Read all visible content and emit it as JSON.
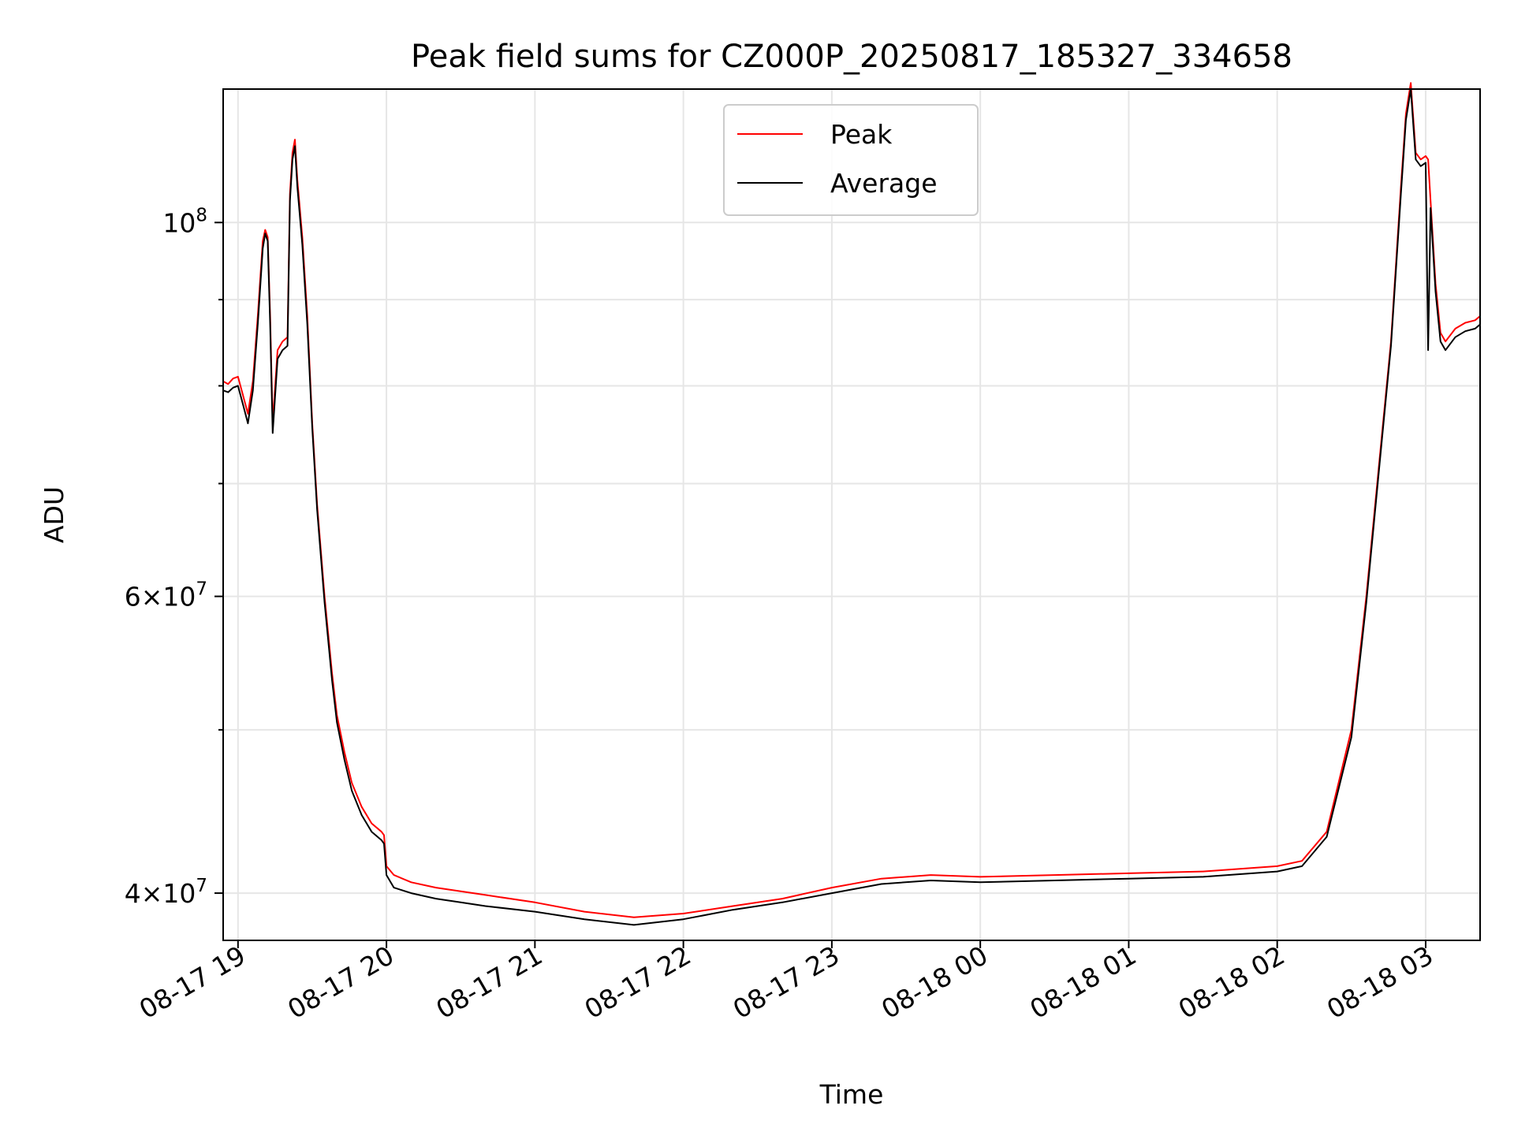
{
  "chart_data": {
    "type": "line",
    "title": "Peak field sums for CZ000P_20250817_185327_334658",
    "xlabel": "Time",
    "ylabel": "ADU",
    "x_axis": {
      "kind": "datetime",
      "range": [
        "2025-08-17 18:54",
        "2025-08-18 03:22"
      ],
      "ticks": [
        "2025-08-17 19:00",
        "2025-08-17 20:00",
        "2025-08-17 21:00",
        "2025-08-17 22:00",
        "2025-08-17 23:00",
        "2025-08-18 00:00",
        "2025-08-18 01:00",
        "2025-08-18 02:00",
        "2025-08-18 03:00"
      ],
      "tick_labels": [
        "08-17 19",
        "08-17 20",
        "08-17 21",
        "08-17 22",
        "08-17 23",
        "08-18 00",
        "08-18 01",
        "08-18 02",
        "08-18 03"
      ]
    },
    "y_axis": {
      "scale": "log",
      "range": [
        37500000,
        120000000
      ],
      "major_ticks": [
        40000000,
        60000000,
        100000000
      ],
      "major_tick_labels": [
        {
          "mantissa": "4",
          "exp": "7"
        },
        {
          "mantissa": "6",
          "exp": "7"
        },
        {
          "mantissa": "",
          "exp": "8"
        }
      ],
      "minor_ticks": [
        50000000,
        70000000,
        80000000,
        90000000
      ]
    },
    "grid": true,
    "legend": {
      "position": "top-center",
      "entries": [
        "Peak",
        "Average"
      ]
    },
    "series": [
      {
        "name": "Peak",
        "color": "#ff0000",
        "x": [
          "2025-08-17 18:54",
          "2025-08-17 18:56",
          "2025-08-17 18:58",
          "2025-08-17 19:00",
          "2025-08-17 19:02",
          "2025-08-17 19:04",
          "2025-08-17 19:06",
          "2025-08-17 19:08",
          "2025-08-17 19:10",
          "2025-08-17 19:11",
          "2025-08-17 19:12",
          "2025-08-17 19:13",
          "2025-08-17 19:14",
          "2025-08-17 19:16",
          "2025-08-17 19:18",
          "2025-08-17 19:20",
          "2025-08-17 19:21",
          "2025-08-17 19:22",
          "2025-08-17 19:23",
          "2025-08-17 19:24",
          "2025-08-17 19:26",
          "2025-08-17 19:28",
          "2025-08-17 19:30",
          "2025-08-17 19:32",
          "2025-08-17 19:35",
          "2025-08-17 19:38",
          "2025-08-17 19:40",
          "2025-08-17 19:43",
          "2025-08-17 19:46",
          "2025-08-17 19:50",
          "2025-08-17 19:54",
          "2025-08-17 19:58",
          "2025-08-17 19:59",
          "2025-08-17 20:00",
          "2025-08-17 20:03",
          "2025-08-17 20:10",
          "2025-08-17 20:20",
          "2025-08-17 20:30",
          "2025-08-17 20:40",
          "2025-08-17 21:00",
          "2025-08-17 21:20",
          "2025-08-17 21:40",
          "2025-08-17 22:00",
          "2025-08-17 22:20",
          "2025-08-17 22:40",
          "2025-08-17 23:00",
          "2025-08-17 23:20",
          "2025-08-17 23:40",
          "2025-08-18 00:00",
          "2025-08-18 00:30",
          "2025-08-18 01:00",
          "2025-08-18 01:30",
          "2025-08-18 02:00",
          "2025-08-18 02:10",
          "2025-08-18 02:20",
          "2025-08-18 02:30",
          "2025-08-18 02:36",
          "2025-08-18 02:42",
          "2025-08-18 02:46",
          "2025-08-18 02:50",
          "2025-08-18 02:52",
          "2025-08-18 02:54",
          "2025-08-18 02:56",
          "2025-08-18 02:58",
          "2025-08-18 03:00",
          "2025-08-18 03:01",
          "2025-08-18 03:02",
          "2025-08-18 03:04",
          "2025-08-18 03:06",
          "2025-08-18 03:08",
          "2025-08-18 03:12",
          "2025-08-18 03:16",
          "2025-08-18 03:20",
          "2025-08-18 03:22"
        ],
        "values": [
          80500000,
          80200000,
          80800000,
          81000000,
          79000000,
          77000000,
          80500000,
          88000000,
          97500000,
          99000000,
          98000000,
          88000000,
          76000000,
          84000000,
          85000000,
          85500000,
          104000000,
          110000000,
          112000000,
          106000000,
          98000000,
          88000000,
          76000000,
          68000000,
          60000000,
          54000000,
          51000000,
          48500000,
          46500000,
          45000000,
          44000000,
          43500000,
          43300000,
          41500000,
          41000000,
          40600000,
          40300000,
          40100000,
          39900000,
          39500000,
          39000000,
          38700000,
          38900000,
          39300000,
          39700000,
          40300000,
          40800000,
          41000000,
          40900000,
          41000000,
          41100000,
          41200000,
          41500000,
          41800000,
          43500000,
          50000000,
          60000000,
          74000000,
          85000000,
          105000000,
          116000000,
          121000000,
          110000000,
          109000000,
          109500000,
          109000000,
          103000000,
          92000000,
          86000000,
          85000000,
          86500000,
          87200000,
          87500000,
          88000000
        ]
      },
      {
        "name": "Average",
        "color": "#000000",
        "x": [
          "2025-08-17 18:54",
          "2025-08-17 18:56",
          "2025-08-17 18:58",
          "2025-08-17 19:00",
          "2025-08-17 19:02",
          "2025-08-17 19:04",
          "2025-08-17 19:06",
          "2025-08-17 19:08",
          "2025-08-17 19:10",
          "2025-08-17 19:11",
          "2025-08-17 19:12",
          "2025-08-17 19:13",
          "2025-08-17 19:14",
          "2025-08-17 19:16",
          "2025-08-17 19:18",
          "2025-08-17 19:20",
          "2025-08-17 19:21",
          "2025-08-17 19:22",
          "2025-08-17 19:23",
          "2025-08-17 19:24",
          "2025-08-17 19:26",
          "2025-08-17 19:28",
          "2025-08-17 19:30",
          "2025-08-17 19:32",
          "2025-08-17 19:35",
          "2025-08-17 19:38",
          "2025-08-17 19:40",
          "2025-08-17 19:43",
          "2025-08-17 19:46",
          "2025-08-17 19:50",
          "2025-08-17 19:54",
          "2025-08-17 19:58",
          "2025-08-17 19:59",
          "2025-08-17 20:00",
          "2025-08-17 20:03",
          "2025-08-17 20:10",
          "2025-08-17 20:20",
          "2025-08-17 20:30",
          "2025-08-17 20:40",
          "2025-08-17 21:00",
          "2025-08-17 21:20",
          "2025-08-17 21:40",
          "2025-08-17 22:00",
          "2025-08-17 22:20",
          "2025-08-17 22:40",
          "2025-08-17 23:00",
          "2025-08-17 23:20",
          "2025-08-17 23:40",
          "2025-08-18 00:00",
          "2025-08-18 00:30",
          "2025-08-18 01:00",
          "2025-08-18 01:30",
          "2025-08-18 02:00",
          "2025-08-18 02:10",
          "2025-08-18 02:20",
          "2025-08-18 02:30",
          "2025-08-18 02:36",
          "2025-08-18 02:42",
          "2025-08-18 02:46",
          "2025-08-18 02:50",
          "2025-08-18 02:52",
          "2025-08-18 02:54",
          "2025-08-18 02:56",
          "2025-08-18 02:58",
          "2025-08-18 03:00",
          "2025-08-18 03:01",
          "2025-08-18 03:02",
          "2025-08-18 03:04",
          "2025-08-18 03:06",
          "2025-08-18 03:08",
          "2025-08-18 03:12",
          "2025-08-18 03:16",
          "2025-08-18 03:20",
          "2025-08-18 03:22"
        ],
        "values": [
          79500000,
          79300000,
          79800000,
          80000000,
          78000000,
          76000000,
          79500000,
          87000000,
          96500000,
          98500000,
          97500000,
          87000000,
          75000000,
          83000000,
          84000000,
          84500000,
          103000000,
          109000000,
          111000000,
          105000000,
          97000000,
          87000000,
          75500000,
          67500000,
          59500000,
          53500000,
          50500000,
          48000000,
          46000000,
          44500000,
          43500000,
          43000000,
          42800000,
          41000000,
          40300000,
          40000000,
          39700000,
          39500000,
          39300000,
          39000000,
          38600000,
          38300000,
          38600000,
          39100000,
          39500000,
          40000000,
          40500000,
          40700000,
          40600000,
          40700000,
          40800000,
          40900000,
          41200000,
          41500000,
          43200000,
          49500000,
          59500000,
          73500000,
          84500000,
          104000000,
          115000000,
          120000000,
          109000000,
          108000000,
          108500000,
          84000000,
          102000000,
          91000000,
          85000000,
          84000000,
          85500000,
          86200000,
          86500000,
          87000000
        ]
      }
    ]
  }
}
